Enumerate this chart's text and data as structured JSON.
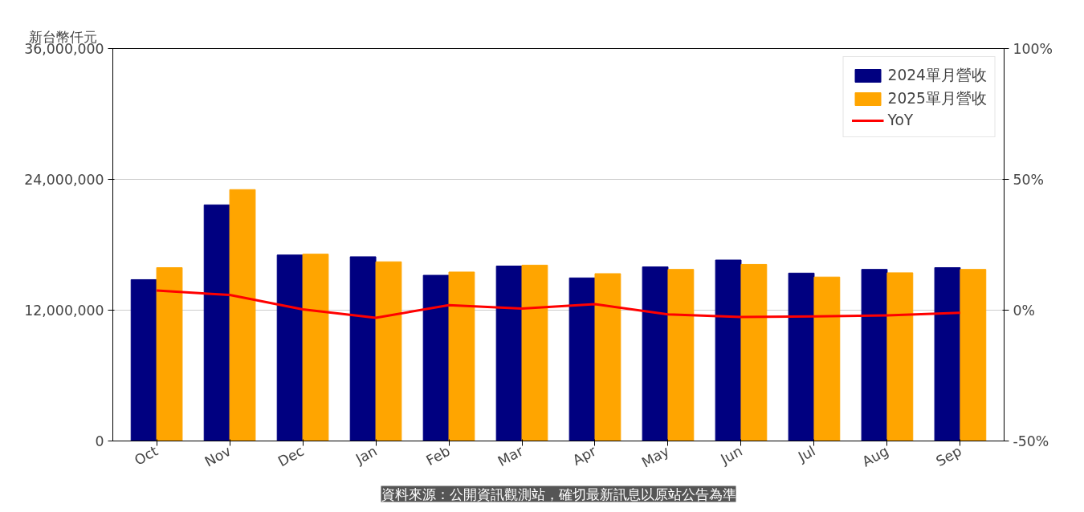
{
  "chart_data": {
    "type": "bar",
    "ylabel": "新台幣仟元",
    "categories": [
      "Oct",
      "Nov",
      "Dec",
      "Jan",
      "Feb",
      "Mar",
      "Apr",
      "May",
      "Jun",
      "Jul",
      "Aug",
      "Sep"
    ],
    "series": [
      {
        "name": "2024單月營收",
        "color": "#000080",
        "values": [
          14800000,
          21660000,
          17060000,
          16900000,
          15200000,
          16050000,
          14960000,
          15970000,
          16600000,
          15400000,
          15740000,
          15900000
        ]
      },
      {
        "name": "2025單月營收",
        "color": "#ffa500",
        "values": [
          15900000,
          23060000,
          17140000,
          16440000,
          15500000,
          16130000,
          15350000,
          15740000,
          16200000,
          15040000,
          15430000,
          15740000
        ]
      },
      {
        "name": "YoY",
        "type": "line",
        "axis": "y2",
        "color": "#ff0000",
        "values": [
          7.5,
          5.8,
          0.3,
          -2.9,
          1.9,
          0.6,
          2.3,
          -1.6,
          -2.6,
          -2.4,
          -2.0,
          -1.0
        ]
      }
    ],
    "ylim": [
      0,
      36000000
    ],
    "yticks": [
      {
        "value": 0,
        "label": "0"
      },
      {
        "value": 12000000,
        "label": "12,000,000"
      },
      {
        "value": 24000000,
        "label": "24,000,000"
      },
      {
        "value": 36000000,
        "label": "36,000,000"
      }
    ],
    "y2lim": [
      -50,
      100
    ],
    "y2ticks": [
      {
        "value": -50,
        "label": "-50%"
      },
      {
        "value": 0,
        "label": "0%"
      },
      {
        "value": 50,
        "label": "50%"
      },
      {
        "value": 100,
        "label": "100%"
      }
    ],
    "grid": "y",
    "legend": "top right",
    "marker": "none",
    "line_style": "solid",
    "annotations": [
      "資料來源：公開資訊觀測站，確切最新訊息以原站公告為準"
    ]
  }
}
